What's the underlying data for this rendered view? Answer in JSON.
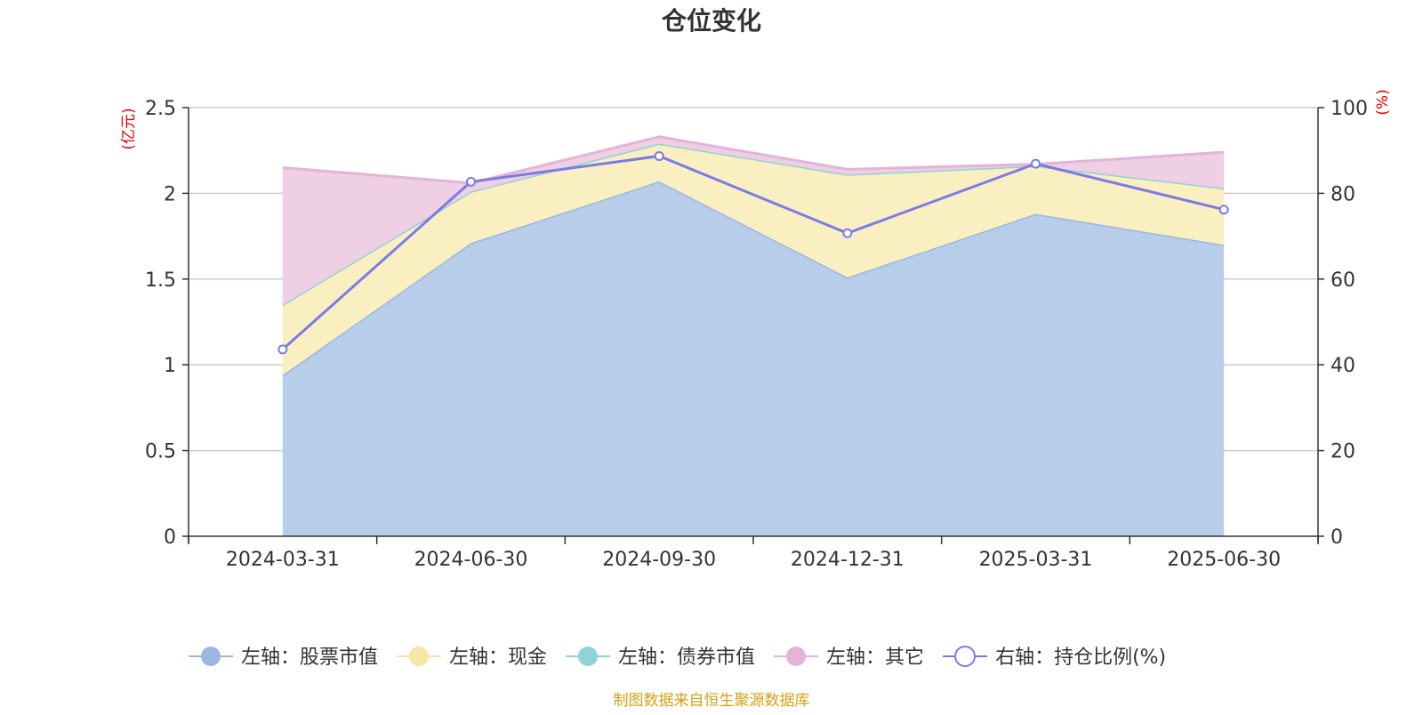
{
  "chart_data": {
    "type": "area",
    "title": "仓位变化",
    "left_axis_unit": "(亿元)",
    "right_axis_unit": "(%)",
    "categories": [
      "2024-03-31",
      "2024-06-30",
      "2024-09-30",
      "2024-12-31",
      "2025-03-31",
      "2025-06-30"
    ],
    "left_ylim": [
      0,
      2.5
    ],
    "left_yticks": [
      "0",
      "0.5",
      "1",
      "1.5",
      "2",
      "2.5"
    ],
    "right_ylim": [
      0,
      100
    ],
    "right_yticks": [
      "0",
      "20",
      "40",
      "60",
      "80",
      "100"
    ],
    "stacked": true,
    "grid": true,
    "legend_position": "bottom",
    "series": [
      {
        "name": "左轴：股票市值",
        "axis": "left",
        "type": "area",
        "color": "#9bb8e0",
        "fill": "#b8cdea",
        "values": [
          0.94,
          1.71,
          2.07,
          1.51,
          1.88,
          1.7
        ]
      },
      {
        "name": "左轴：现金",
        "axis": "left",
        "type": "area",
        "color": "#f6e7a4",
        "fill": "#faefc0",
        "values": [
          0.41,
          0.3,
          0.22,
          0.6,
          0.28,
          0.33
        ]
      },
      {
        "name": "左轴：债券市值",
        "axis": "left",
        "type": "area",
        "color": "#8ed4d4",
        "fill": "#b8e6e6",
        "values": [
          0,
          0,
          0,
          0,
          0,
          0
        ]
      },
      {
        "name": "左轴：其它",
        "axis": "left",
        "type": "area",
        "color": "#e3b4d8",
        "fill": "#eecfe4",
        "values": [
          0.8,
          0.05,
          0.04,
          0.03,
          0.01,
          0.21
        ]
      },
      {
        "name": "右轴：持仓比例(%)",
        "axis": "right",
        "type": "line",
        "color": "#7b7be8",
        "values": [
          43.6,
          82.7,
          88.7,
          70.7,
          86.9,
          76.2
        ]
      }
    ],
    "source_note": "制图数据来自恒生聚源数据库"
  }
}
